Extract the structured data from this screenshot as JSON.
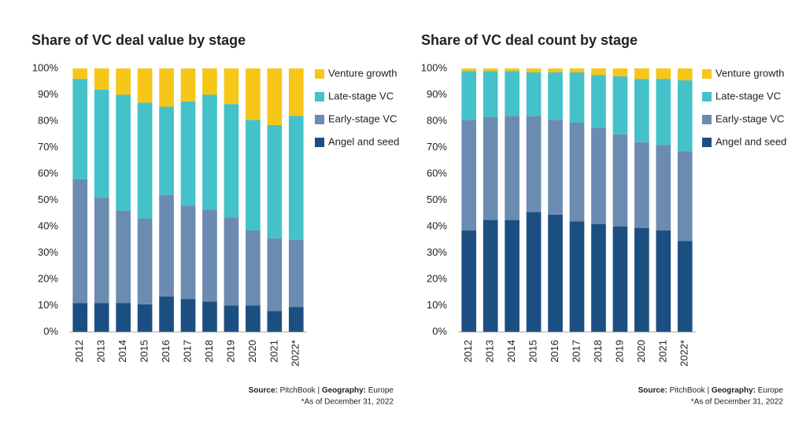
{
  "chart_data": [
    {
      "type": "stacked_bar",
      "title": "Share of VC deal value by stage",
      "categories": [
        "2012",
        "2013",
        "2014",
        "2015",
        "2016",
        "2017",
        "2018",
        "2019",
        "2020",
        "2021",
        "2022*"
      ],
      "series": [
        {
          "name": "Angel and seed",
          "color": "#1b4f82",
          "values": [
            11,
            11,
            11,
            10.5,
            13.5,
            12.5,
            11.5,
            10,
            10,
            8,
            9.5
          ]
        },
        {
          "name": "Early-stage VC",
          "color": "#6b8bb1",
          "values": [
            47,
            40,
            35,
            32.5,
            38.5,
            35.5,
            35,
            33.5,
            28.5,
            27.5,
            25.5
          ]
        },
        {
          "name": "Late-stage VC",
          "color": "#45c1c9",
          "values": [
            38,
            41,
            44,
            44,
            33.5,
            39.5,
            43.5,
            43,
            42,
            43,
            47
          ]
        },
        {
          "name": "Venture growth",
          "color": "#f6c619",
          "values": [
            4,
            8,
            10,
            13,
            14.5,
            12.5,
            10,
            13.5,
            19.5,
            21.5,
            18
          ]
        }
      ],
      "ylim": [
        0,
        100
      ],
      "yticks": [
        {
          "value": 0,
          "label": "0%"
        },
        {
          "value": 10,
          "label": "10%"
        },
        {
          "value": 20,
          "label": "20%"
        },
        {
          "value": 30,
          "label": "30%"
        },
        {
          "value": 40,
          "label": "40%"
        },
        {
          "value": 50,
          "label": "50%"
        },
        {
          "value": 60,
          "label": "60%"
        },
        {
          "value": 70,
          "label": "70%"
        },
        {
          "value": 80,
          "label": "80%"
        },
        {
          "value": 90,
          "label": "90%"
        },
        {
          "value": 100,
          "label": "100%"
        }
      ],
      "legend": "right",
      "source_label": "Source:",
      "source": "PitchBook",
      "separator": "|",
      "geography_label": "Geography:",
      "geography": "Europe",
      "note": "*As of December 31, 2022"
    },
    {
      "type": "stacked_bar",
      "title": "Share of VC deal count by stage",
      "categories": [
        "2012",
        "2013",
        "2014",
        "2015",
        "2016",
        "2017",
        "2018",
        "2019",
        "2020",
        "2021",
        "2022*"
      ],
      "series": [
        {
          "name": "Angel and seed",
          "color": "#1b4f82",
          "values": [
            38.5,
            42.5,
            42.5,
            45.5,
            44.5,
            42,
            41,
            40,
            39.5,
            38.5,
            34.5
          ]
        },
        {
          "name": "Early-stage VC",
          "color": "#6b8bb1",
          "values": [
            42,
            39,
            39.5,
            36.5,
            36,
            37.5,
            36.5,
            35,
            32.5,
            32.5,
            34
          ]
        },
        {
          "name": "Late-stage VC",
          "color": "#45c1c9",
          "values": [
            18.5,
            17.5,
            17,
            16.5,
            18,
            19,
            20,
            22,
            24,
            25,
            27
          ]
        },
        {
          "name": "Venture growth",
          "color": "#f6c619",
          "values": [
            1,
            1,
            1,
            1.5,
            1.5,
            1.5,
            2.5,
            3,
            4,
            4,
            4.5
          ]
        }
      ],
      "ylim": [
        0,
        100
      ],
      "yticks": [
        {
          "value": 0,
          "label": "0%"
        },
        {
          "value": 10,
          "label": "10%"
        },
        {
          "value": 20,
          "label": "20%"
        },
        {
          "value": 30,
          "label": "30%"
        },
        {
          "value": 40,
          "label": "40%"
        },
        {
          "value": 50,
          "label": "50%"
        },
        {
          "value": 60,
          "label": "60%"
        },
        {
          "value": 70,
          "label": "70%"
        },
        {
          "value": 80,
          "label": "80%"
        },
        {
          "value": 90,
          "label": "90%"
        },
        {
          "value": 100,
          "label": "100%"
        }
      ],
      "legend": "right",
      "source_label": "Source:",
      "source": "PitchBook",
      "separator": "|",
      "geography_label": "Geography:",
      "geography": "Europe",
      "note": "*As of December 31, 2022"
    }
  ]
}
